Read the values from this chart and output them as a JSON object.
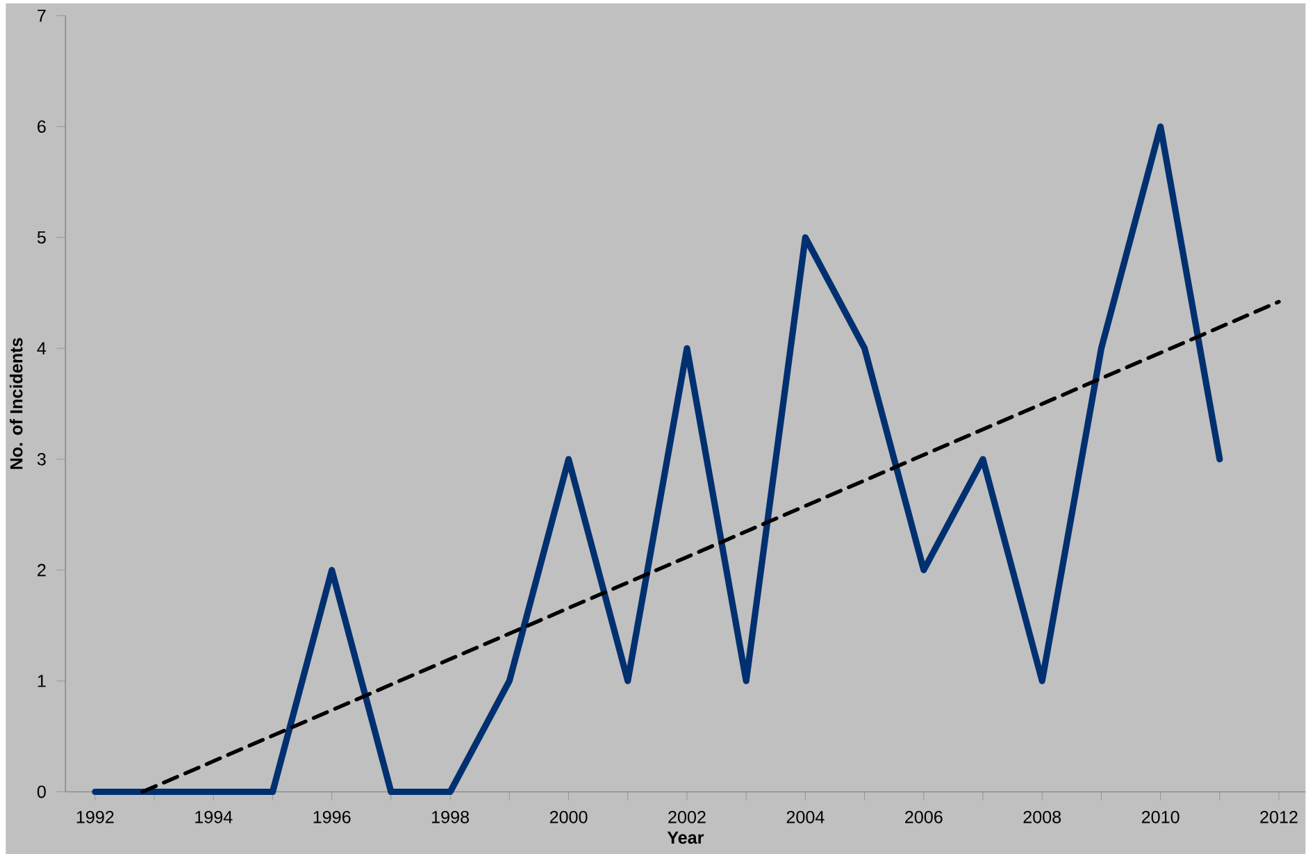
{
  "chart_data": {
    "type": "line",
    "xlabel": "Year",
    "ylabel": "No. of Incidents",
    "x": [
      1992,
      1993,
      1994,
      1995,
      1996,
      1997,
      1998,
      1999,
      2000,
      2001,
      2002,
      2003,
      2004,
      2005,
      2006,
      2007,
      2008,
      2009,
      2010,
      2011
    ],
    "series": [
      {
        "color": "#003070",
        "values": [
          0,
          0,
          0,
          0,
          2,
          0,
          0,
          1,
          3,
          1,
          4,
          1,
          5,
          4,
          2,
          3,
          1,
          4,
          6,
          3
        ]
      },
      {
        "type": "line",
        "x": [
          1992.8,
          2012
        ],
        "values": [
          0,
          4.42
        ],
        "color": "#000000",
        "line_style": "dashed"
      }
    ],
    "xlim": [
      1991.5,
      2012.45
    ],
    "ylim": [
      0,
      7
    ],
    "xticks": [
      1992,
      {
        "value": 1993,
        "label": null
      },
      1994,
      {
        "value": 1995,
        "label": null
      },
      1996,
      {
        "value": 1997,
        "label": null
      },
      1998,
      {
        "value": 1999,
        "label": null
      },
      2000,
      {
        "value": 2001,
        "label": null
      },
      2002,
      {
        "value": 2003,
        "label": null
      },
      2004,
      {
        "value": 2005,
        "label": null
      },
      2006,
      {
        "value": 2007,
        "label": null
      },
      2008,
      {
        "value": 2009,
        "label": null
      },
      2010,
      {
        "value": 2011,
        "label": null
      },
      2012
    ],
    "yticks": [
      0,
      1,
      2,
      3,
      4,
      5,
      6,
      7
    ]
  }
}
